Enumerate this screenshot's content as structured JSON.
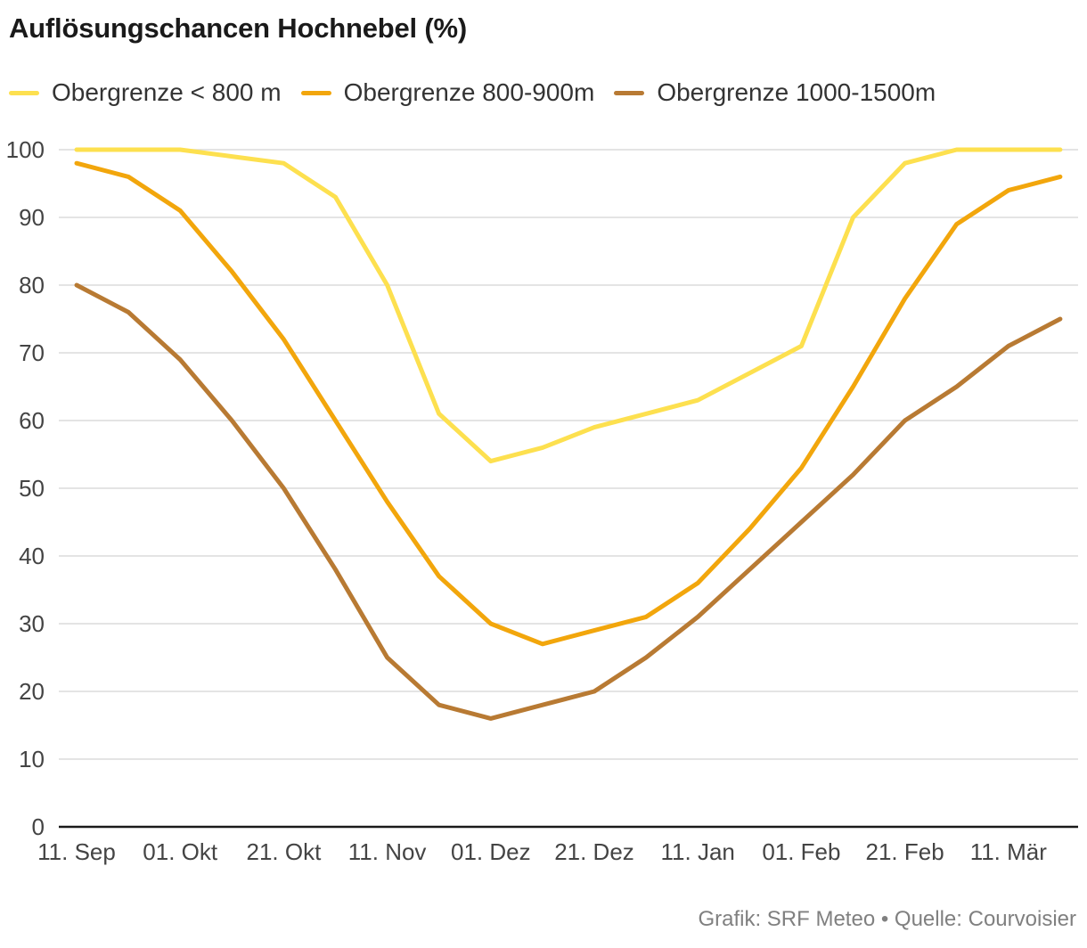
{
  "title": "Auflösungschancen Hochnebel (%)",
  "source": "Grafik: SRF Meteo • Quelle: Courvoisier",
  "chart_data": {
    "type": "line",
    "title": "Auflösungschancen Hochnebel (%)",
    "xlabel": "",
    "ylabel": "",
    "ylim": [
      0,
      100
    ],
    "yticks": [
      0,
      10,
      20,
      30,
      40,
      50,
      60,
      70,
      80,
      90,
      100
    ],
    "x_tick_labels": [
      "11. Sep",
      "01. Okt",
      "21. Okt",
      "11. Nov",
      "01. Dez",
      "21. Dez",
      "11. Jan",
      "01. Feb",
      "21. Feb",
      "11. Mär"
    ],
    "grid": true,
    "legend_position": "top-left",
    "series": [
      {
        "name": "Obergrenze < 800 m",
        "color": "#fde04f",
        "values": [
          100,
          100,
          100,
          99,
          98,
          93,
          80,
          61,
          54,
          56,
          59,
          61,
          63,
          67,
          71,
          90,
          98,
          100,
          100,
          100
        ]
      },
      {
        "name": "Obergrenze 800-900m",
        "color": "#f2a60c",
        "values": [
          98,
          96,
          91,
          82,
          72,
          60,
          48,
          37,
          30,
          27,
          29,
          31,
          36,
          44,
          53,
          65,
          78,
          89,
          94,
          96
        ]
      },
      {
        "name": "Obergrenze 1000-1500m",
        "color": "#b87a33",
        "values": [
          80,
          76,
          69,
          60,
          50,
          38,
          25,
          18,
          16,
          18,
          20,
          25,
          31,
          38,
          45,
          52,
          60,
          65,
          71,
          75
        ]
      }
    ]
  }
}
